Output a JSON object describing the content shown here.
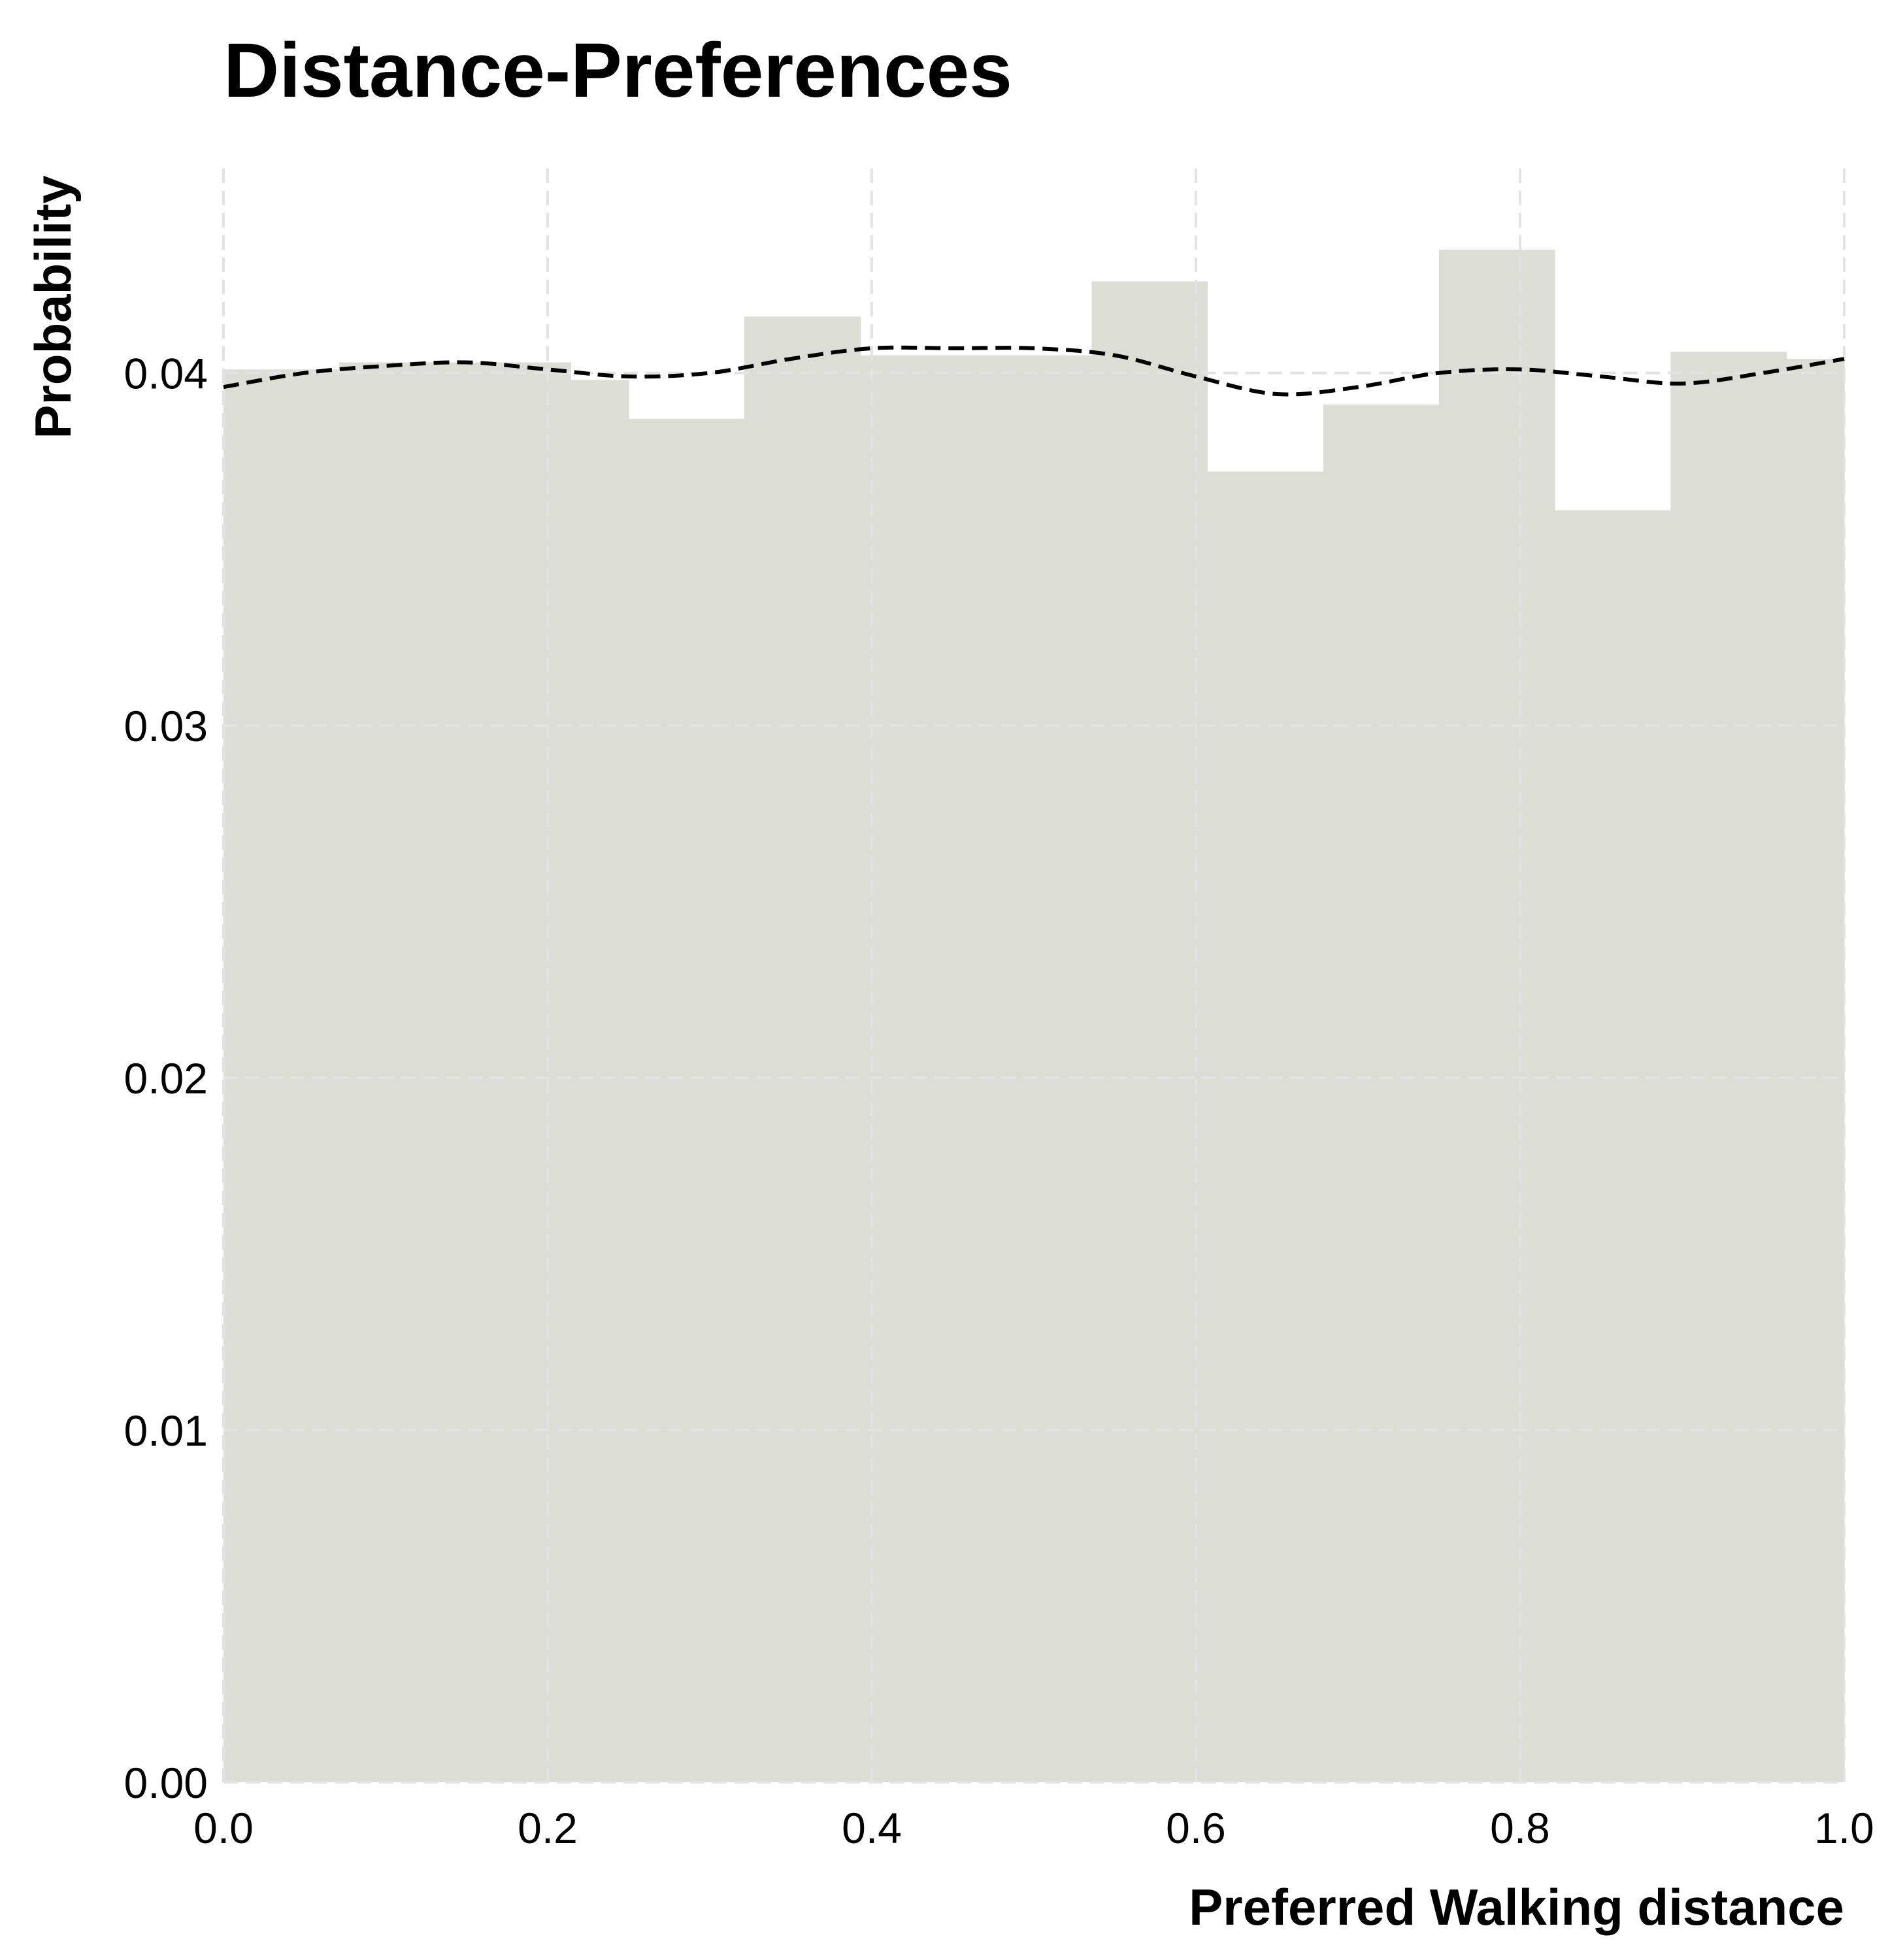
{
  "chart_data": {
    "type": "bar",
    "title": "Distance-Preferences",
    "xlabel": "Preferred Walking distance",
    "ylabel": "Probability",
    "xlim": [
      0.0,
      1.0
    ],
    "ylim": [
      0.0,
      0.0458
    ],
    "xticks": [
      "0.0",
      "0.2",
      "0.4",
      "0.6",
      "0.8",
      "1.0"
    ],
    "yticks": [
      "0.00",
      "0.01",
      "0.02",
      "0.03",
      "0.04"
    ],
    "grid": true,
    "bar_color": "#dcddd5",
    "kde_color": "#000000",
    "bins": [
      {
        "x0": 0.0,
        "x1": 0.0714,
        "value": 0.0401
      },
      {
        "x0": 0.0714,
        "x1": 0.1429,
        "value": 0.0403
      },
      {
        "x0": 0.1429,
        "x1": 0.2143,
        "value": 0.0403
      },
      {
        "x0": 0.2143,
        "x1": 0.25,
        "value": 0.0398
      },
      {
        "x0": 0.25,
        "x1": 0.3214,
        "value": 0.0387
      },
      {
        "x0": 0.3214,
        "x1": 0.3929,
        "value": 0.0416
      },
      {
        "x0": 0.3929,
        "x1": 0.5357,
        "value": 0.0405
      },
      {
        "x0": 0.5357,
        "x1": 0.6071,
        "value": 0.0426
      },
      {
        "x0": 0.6071,
        "x1": 0.6786,
        "value": 0.0372
      },
      {
        "x0": 0.6786,
        "x1": 0.75,
        "value": 0.0391
      },
      {
        "x0": 0.75,
        "x1": 0.8214,
        "value": 0.0435
      },
      {
        "x0": 0.8214,
        "x1": 0.8929,
        "value": 0.0361
      },
      {
        "x0": 0.8929,
        "x1": 0.9643,
        "value": 0.0406
      },
      {
        "x0": 0.9643,
        "x1": 1.0,
        "value": 0.0404
      }
    ],
    "kde": {
      "x": [
        0.0,
        0.05,
        0.1,
        0.15,
        0.2,
        0.25,
        0.3,
        0.35,
        0.4,
        0.45,
        0.5,
        0.55,
        0.6,
        0.65,
        0.7,
        0.75,
        0.8,
        0.85,
        0.9,
        0.95,
        1.0
      ],
      "y": [
        0.0396,
        0.04,
        0.0402,
        0.0403,
        0.0401,
        0.0399,
        0.04,
        0.0404,
        0.0407,
        0.0407,
        0.0407,
        0.0405,
        0.0399,
        0.0394,
        0.0396,
        0.04,
        0.0401,
        0.0399,
        0.0397,
        0.04,
        0.0404
      ]
    }
  }
}
